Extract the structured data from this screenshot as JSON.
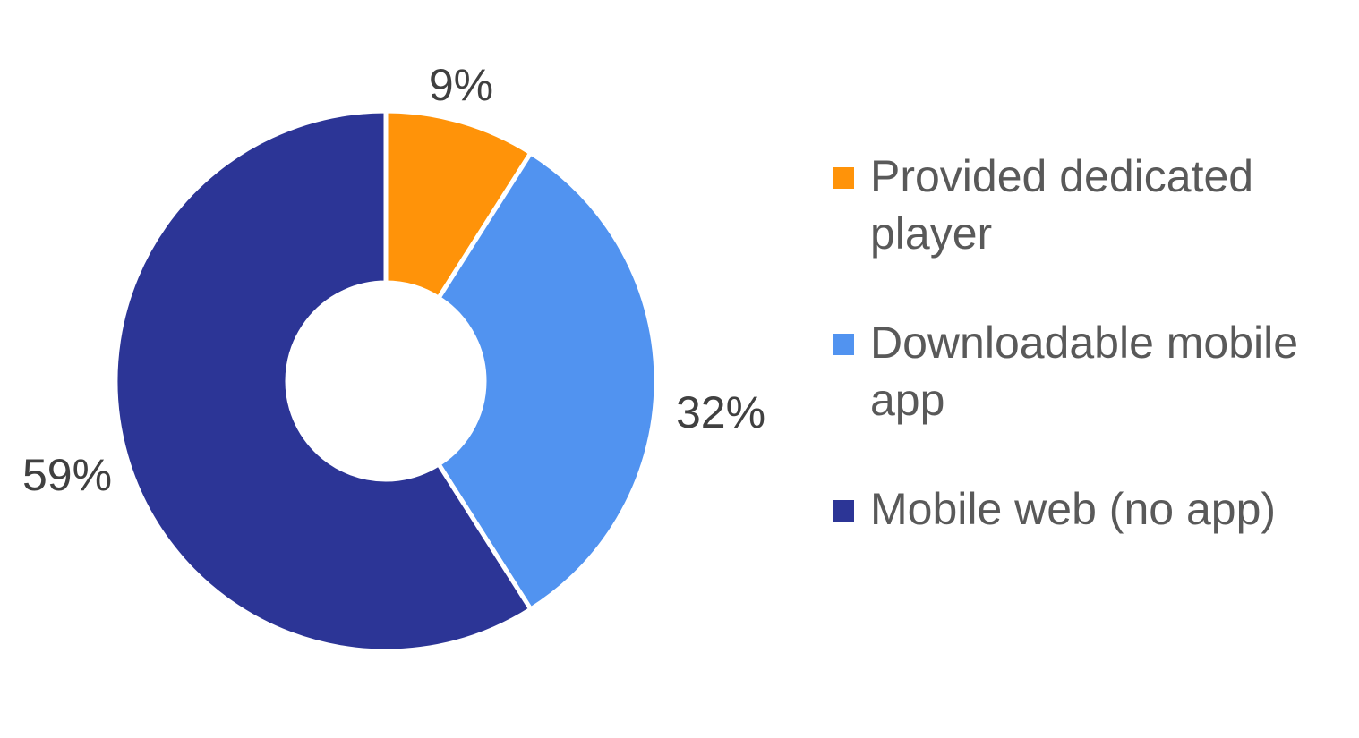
{
  "chart_data": {
    "type": "pie",
    "variant": "donut",
    "title": "",
    "categories": [
      "Provided dedicated player",
      "Downloadable mobile app",
      "Mobile web (no app)"
    ],
    "values": [
      9,
      32,
      59
    ],
    "labels": [
      "9%",
      "32%",
      "59%"
    ],
    "colors": [
      "#FF9309",
      "#5193F0",
      "#2C3596"
    ],
    "legend_position": "right",
    "start_angle": "top, clockwise"
  },
  "legend": {
    "items": [
      {
        "label": "Provided dedicated player",
        "color": "#FF9309"
      },
      {
        "label": "Downloadable mobile app",
        "color": "#5193F0"
      },
      {
        "label": "Mobile web (no app)",
        "color": "#2C3596"
      }
    ]
  }
}
